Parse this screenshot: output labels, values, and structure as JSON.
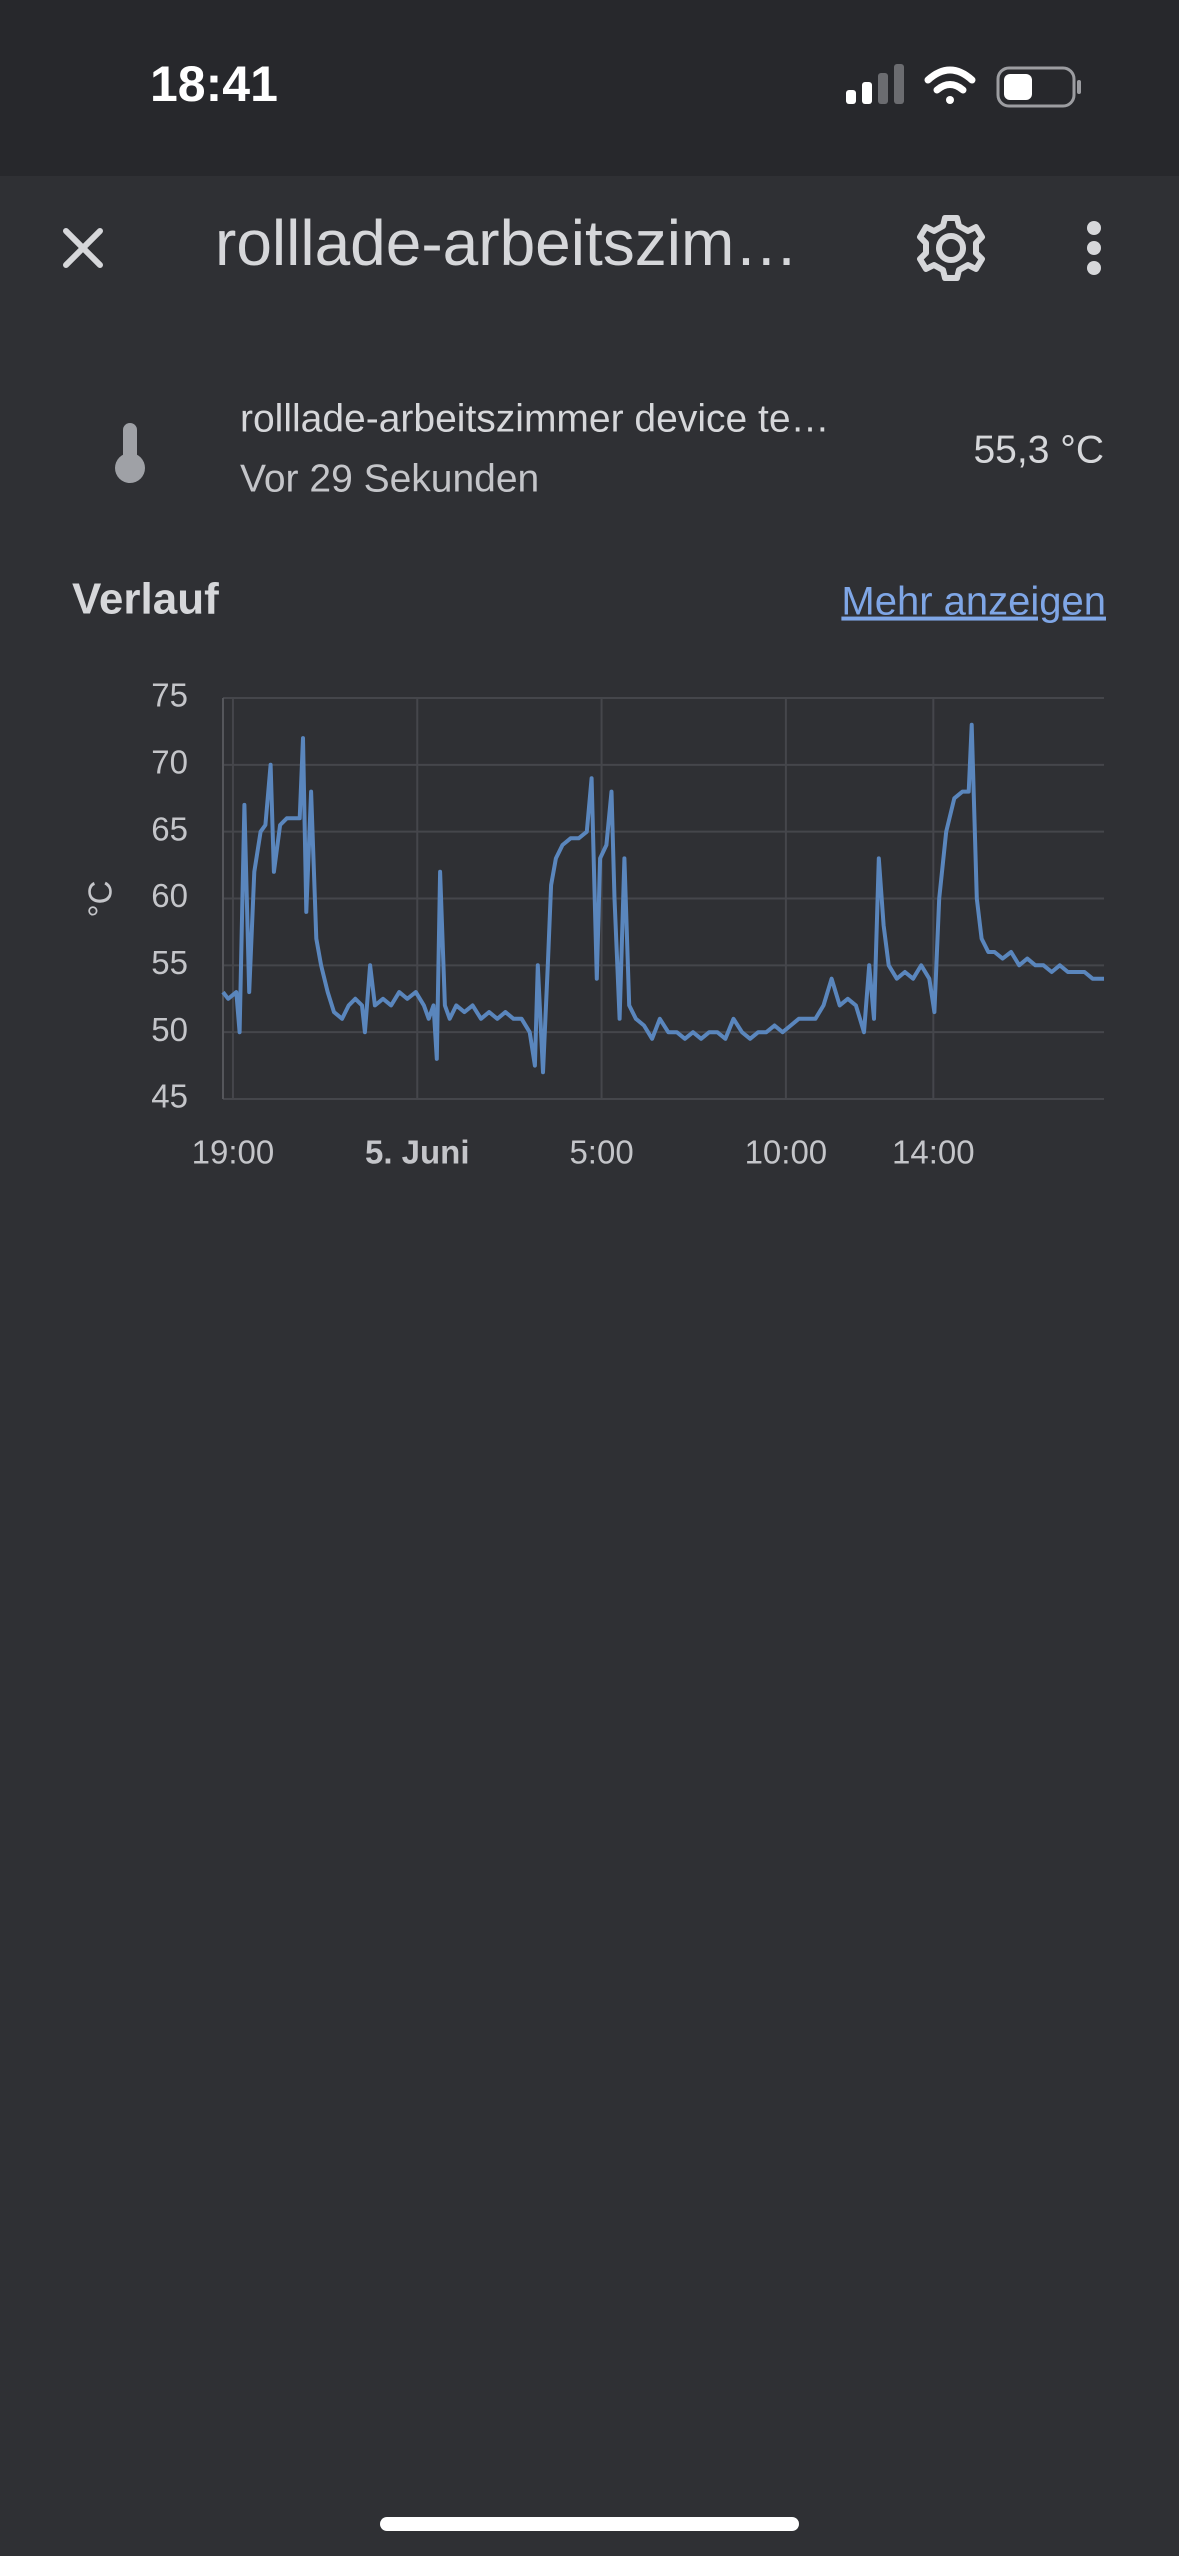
{
  "status_bar": {
    "time": "18:41"
  },
  "header": {
    "title": "rolllade-arbeitszim…"
  },
  "entity": {
    "name": "rolllade-arbeitszimmer device te…",
    "last_changed": "Vor 29 Sekunden",
    "state": "55,3 °C"
  },
  "history": {
    "title": "Verlauf",
    "link": "Mehr anzeigen"
  },
  "chart_data": {
    "type": "line",
    "ylabel": "°C",
    "color": "#5a86bd",
    "grid": true,
    "ylim": [
      45,
      75
    ],
    "yticks": [
      45,
      50,
      55,
      60,
      65,
      70,
      75
    ],
    "xlim": [
      18.73,
      42.63
    ],
    "xticks": [
      {
        "value": 19,
        "label": "19:00"
      },
      {
        "value": 24,
        "label": "5. Juni"
      },
      {
        "value": 29,
        "label": "5:00"
      },
      {
        "value": 34,
        "label": "10:00"
      },
      {
        "value": 38,
        "label": "14:00"
      }
    ],
    "x": [
      18.73,
      18.87,
      19.09,
      19.18,
      19.31,
      19.44,
      19.58,
      19.75,
      19.88,
      20.02,
      20.11,
      20.28,
      20.46,
      20.64,
      20.81,
      20.9,
      20.99,
      21.12,
      21.26,
      21.39,
      21.57,
      21.74,
      21.96,
      22.14,
      22.32,
      22.5,
      22.58,
      22.72,
      22.85,
      23.07,
      23.29,
      23.51,
      23.73,
      23.96,
      24.18,
      24.31,
      24.44,
      24.53,
      24.62,
      24.75,
      24.88,
      25.06,
      25.28,
      25.5,
      25.73,
      25.95,
      26.17,
      26.39,
      26.61,
      26.83,
      27.05,
      27.19,
      27.27,
      27.41,
      27.54,
      27.63,
      27.76,
      27.94,
      28.16,
      28.38,
      28.6,
      28.73,
      28.87,
      28.96,
      29.13,
      29.27,
      29.35,
      29.49,
      29.62,
      29.75,
      29.93,
      30.15,
      30.37,
      30.58,
      30.81,
      31.04,
      31.26,
      31.48,
      31.7,
      31.92,
      32.14,
      32.36,
      32.58,
      32.81,
      33.03,
      33.25,
      33.47,
      33.69,
      33.91,
      34.13,
      34.35,
      34.58,
      34.8,
      35.02,
      35.24,
      35.46,
      35.68,
      35.9,
      36.12,
      36.26,
      36.39,
      36.52,
      36.65,
      36.79,
      37.01,
      37.23,
      37.45,
      37.67,
      37.89,
      38.03,
      38.16,
      38.35,
      38.57,
      38.79,
      38.96,
      39.04,
      39.18,
      39.31,
      39.49,
      39.66,
      39.88,
      40.11,
      40.33,
      40.55,
      40.77,
      40.99,
      41.21,
      41.43,
      41.65,
      41.88,
      42.1,
      42.32,
      42.63
    ],
    "values": [
      53,
      52.5,
      53,
      50,
      67,
      53,
      62,
      65,
      65.5,
      70,
      62,
      65.5,
      66,
      66,
      66,
      72,
      59,
      68,
      57,
      55,
      53,
      51.5,
      51,
      52,
      52.5,
      52,
      50,
      55,
      52,
      52.5,
      52,
      53,
      52.5,
      53,
      52,
      51,
      52,
      48,
      62,
      52,
      51,
      52,
      51.5,
      52,
      51,
      51.5,
      51,
      51.5,
      51,
      51,
      50,
      47.5,
      55,
      47,
      55,
      61,
      63,
      64,
      64.5,
      64.5,
      65,
      69,
      54,
      63,
      64,
      68,
      60,
      51,
      63,
      52,
      51,
      50.5,
      49.5,
      51,
      50,
      50,
      49.5,
      50,
      49.5,
      50,
      50,
      49.5,
      51,
      50,
      49.5,
      50,
      50,
      50.5,
      50,
      50.5,
      51,
      51,
      51,
      52,
      54,
      52,
      52.5,
      52,
      50,
      55,
      51,
      63,
      58,
      55,
      54,
      54.5,
      54,
      55,
      54,
      51.5,
      60,
      65,
      67.5,
      68,
      68,
      73,
      60,
      57,
      56,
      56,
      55.5,
      56,
      55,
      55.5,
      55,
      55,
      54.5,
      55,
      54.5,
      54.5,
      54.5,
      54,
      54
    ]
  }
}
